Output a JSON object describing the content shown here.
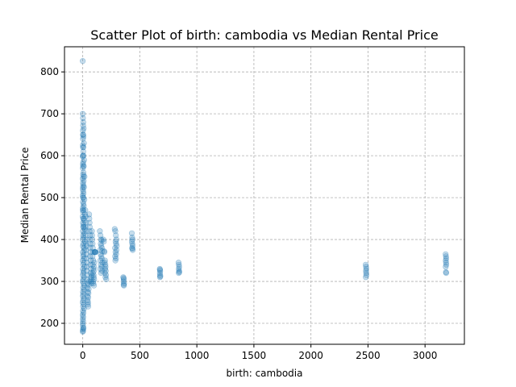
{
  "chart_data": {
    "type": "scatter",
    "title": "Scatter Plot of birth: cambodia vs Median Rental Price",
    "xlabel": "birth: cambodia",
    "ylabel": "Median Rental Price",
    "xlim": [
      -160,
      3345
    ],
    "ylim": [
      150,
      860
    ],
    "xticks": [
      0,
      500,
      1000,
      1500,
      2000,
      2500,
      3000
    ],
    "yticks": [
      200,
      300,
      400,
      500,
      600,
      700,
      800
    ],
    "grid": true,
    "legend": "none",
    "marker_color": "#1f77b4",
    "marker_alpha": 0.25,
    "series": [
      {
        "points": [
          [
            0,
            826
          ],
          [
            0,
            700
          ],
          [
            2,
            690
          ],
          [
            5,
            680
          ],
          [
            3,
            672
          ],
          [
            8,
            665
          ],
          [
            1,
            660
          ],
          [
            4,
            650
          ],
          [
            6,
            645
          ],
          [
            2,
            640
          ],
          [
            10,
            630
          ],
          [
            1,
            625
          ],
          [
            3,
            620
          ],
          [
            5,
            610
          ],
          [
            7,
            600
          ],
          [
            0,
            598
          ],
          [
            12,
            590
          ],
          [
            4,
            585
          ],
          [
            2,
            580
          ],
          [
            9,
            575
          ],
          [
            1,
            570
          ],
          [
            6,
            560
          ],
          [
            3,
            555
          ],
          [
            15,
            550
          ],
          [
            0,
            545
          ],
          [
            8,
            540
          ],
          [
            2,
            535
          ],
          [
            5,
            530
          ],
          [
            11,
            525
          ],
          [
            1,
            520
          ],
          [
            4,
            515
          ],
          [
            7,
            510
          ],
          [
            0,
            505
          ],
          [
            3,
            500
          ],
          [
            14,
            495
          ],
          [
            2,
            490
          ],
          [
            6,
            485
          ],
          [
            9,
            480
          ],
          [
            1,
            475
          ],
          [
            5,
            470
          ],
          [
            3,
            465
          ],
          [
            20,
            460
          ],
          [
            0,
            455
          ],
          [
            8,
            450
          ],
          [
            12,
            445
          ],
          [
            2,
            440
          ],
          [
            6,
            435
          ],
          [
            4,
            430
          ],
          [
            16,
            425
          ],
          [
            1,
            420
          ],
          [
            10,
            415
          ],
          [
            3,
            410
          ],
          [
            7,
            405
          ],
          [
            0,
            400
          ],
          [
            18,
            395
          ],
          [
            5,
            390
          ],
          [
            2,
            385
          ],
          [
            9,
            380
          ],
          [
            13,
            375
          ],
          [
            1,
            370
          ],
          [
            6,
            365
          ],
          [
            4,
            360
          ],
          [
            11,
            355
          ],
          [
            0,
            350
          ],
          [
            8,
            345
          ],
          [
            3,
            340
          ],
          [
            15,
            335
          ],
          [
            2,
            330
          ],
          [
            7,
            325
          ],
          [
            5,
            320
          ],
          [
            1,
            315
          ],
          [
            10,
            310
          ],
          [
            4,
            305
          ],
          [
            0,
            300
          ],
          [
            6,
            295
          ],
          [
            12,
            290
          ],
          [
            3,
            285
          ],
          [
            9,
            280
          ],
          [
            2,
            275
          ],
          [
            5,
            270
          ],
          [
            1,
            265
          ],
          [
            8,
            260
          ],
          [
            4,
            255
          ],
          [
            0,
            250
          ],
          [
            7,
            245
          ],
          [
            3,
            240
          ],
          [
            11,
            235
          ],
          [
            2,
            230
          ],
          [
            6,
            225
          ],
          [
            0,
            220
          ],
          [
            4,
            215
          ],
          [
            1,
            210
          ],
          [
            3,
            205
          ],
          [
            0,
            200
          ],
          [
            2,
            195
          ],
          [
            5,
            190
          ],
          [
            1,
            185
          ],
          [
            0,
            180
          ],
          [
            3,
            182
          ],
          [
            6,
            188
          ],
          [
            2,
            650
          ],
          [
            4,
            620
          ],
          [
            1,
            600
          ],
          [
            3,
            575
          ],
          [
            6,
            550
          ],
          [
            2,
            525
          ],
          [
            5,
            500
          ],
          [
            1,
            470
          ],
          [
            4,
            450
          ],
          [
            8,
            430
          ],
          [
            22,
            470
          ],
          [
            25,
            455
          ],
          [
            28,
            440
          ],
          [
            24,
            430
          ],
          [
            30,
            420
          ],
          [
            26,
            410
          ],
          [
            32,
            400
          ],
          [
            27,
            390
          ],
          [
            35,
            385
          ],
          [
            29,
            375
          ],
          [
            33,
            365
          ],
          [
            31,
            355
          ],
          [
            38,
            345
          ],
          [
            34,
            335
          ],
          [
            36,
            325
          ],
          [
            40,
            315
          ],
          [
            37,
            305
          ],
          [
            42,
            295
          ],
          [
            39,
            285
          ],
          [
            44,
            275
          ],
          [
            41,
            265
          ],
          [
            43,
            255
          ],
          [
            45,
            245
          ],
          [
            47,
            240
          ],
          [
            46,
            250
          ],
          [
            48,
            262
          ],
          [
            50,
            272
          ],
          [
            52,
            282
          ],
          [
            49,
            292
          ],
          [
            55,
            300
          ],
          [
            56,
            460
          ],
          [
            58,
            450
          ],
          [
            60,
            440
          ],
          [
            62,
            430
          ],
          [
            59,
            420
          ],
          [
            64,
            410
          ],
          [
            61,
            400
          ],
          [
            66,
            390
          ],
          [
            63,
            380
          ],
          [
            68,
            370
          ],
          [
            65,
            360
          ],
          [
            70,
            350
          ],
          [
            67,
            340
          ],
          [
            72,
            330
          ],
          [
            69,
            320
          ],
          [
            74,
            310
          ],
          [
            71,
            300
          ],
          [
            76,
            295
          ],
          [
            73,
            305
          ],
          [
            78,
            315
          ],
          [
            80,
            420
          ],
          [
            82,
            410
          ],
          [
            84,
            400
          ],
          [
            86,
            390
          ],
          [
            88,
            380
          ],
          [
            90,
            370
          ],
          [
            85,
            360
          ],
          [
            92,
            350
          ],
          [
            87,
            340
          ],
          [
            94,
            330
          ],
          [
            89,
            320
          ],
          [
            96,
            310
          ],
          [
            91,
            300
          ],
          [
            98,
            290
          ],
          [
            93,
            295
          ],
          [
            100,
            305
          ],
          [
            95,
            315
          ],
          [
            97,
            325
          ],
          [
            99,
            335
          ],
          [
            101,
            345
          ],
          [
            103,
            370
          ],
          [
            105,
            370
          ],
          [
            107,
            370
          ],
          [
            110,
            370
          ],
          [
            112,
            370
          ],
          [
            150,
            420
          ],
          [
            155,
            410
          ],
          [
            160,
            400
          ],
          [
            165,
            398
          ],
          [
            158,
            390
          ],
          [
            162,
            385
          ],
          [
            168,
            380
          ],
          [
            152,
            375
          ],
          [
            170,
            372
          ],
          [
            157,
            365
          ],
          [
            163,
            360
          ],
          [
            167,
            355
          ],
          [
            154,
            350
          ],
          [
            172,
            345
          ],
          [
            159,
            340
          ],
          [
            166,
            335
          ],
          [
            153,
            330
          ],
          [
            169,
            325
          ],
          [
            161,
            320
          ],
          [
            180,
            400
          ],
          [
            185,
            395
          ],
          [
            190,
            370
          ],
          [
            188,
            372
          ],
          [
            195,
            350
          ],
          [
            192,
            345
          ],
          [
            198,
            340
          ],
          [
            200,
            335
          ],
          [
            196,
            330
          ],
          [
            202,
            325
          ],
          [
            194,
            320
          ],
          [
            204,
            315
          ],
          [
            199,
            310
          ],
          [
            206,
            305
          ],
          [
            280,
            425
          ],
          [
            285,
            420
          ],
          [
            290,
            410
          ],
          [
            295,
            400
          ],
          [
            288,
            395
          ],
          [
            292,
            390
          ],
          [
            298,
            385
          ],
          [
            283,
            380
          ],
          [
            296,
            375
          ],
          [
            287,
            370
          ],
          [
            293,
            365
          ],
          [
            284,
            360
          ],
          [
            291,
            355
          ],
          [
            286,
            350
          ],
          [
            355,
            310
          ],
          [
            358,
            308
          ],
          [
            360,
            305
          ],
          [
            357,
            300
          ],
          [
            362,
            295
          ],
          [
            359,
            292
          ],
          [
            361,
            290
          ],
          [
            430,
            415
          ],
          [
            433,
            405
          ],
          [
            436,
            400
          ],
          [
            431,
            395
          ],
          [
            434,
            390
          ],
          [
            437,
            385
          ],
          [
            432,
            380
          ],
          [
            435,
            378
          ],
          [
            438,
            375
          ],
          [
            675,
            330
          ],
          [
            677,
            328
          ],
          [
            679,
            325
          ],
          [
            676,
            320
          ],
          [
            678,
            315
          ],
          [
            680,
            312
          ],
          [
            677,
            310
          ],
          [
            840,
            345
          ],
          [
            843,
            340
          ],
          [
            845,
            335
          ],
          [
            842,
            330
          ],
          [
            844,
            325
          ],
          [
            846,
            322
          ],
          [
            841,
            320
          ],
          [
            2480,
            340
          ],
          [
            2483,
            335
          ],
          [
            2485,
            330
          ],
          [
            2482,
            325
          ],
          [
            2484,
            320
          ],
          [
            2486,
            315
          ],
          [
            2481,
            310
          ],
          [
            3180,
            365
          ],
          [
            3183,
            360
          ],
          [
            3185,
            355
          ],
          [
            3182,
            350
          ],
          [
            3184,
            345
          ],
          [
            3186,
            340
          ],
          [
            3181,
            335
          ],
          [
            3183,
            322
          ],
          [
            3185,
            320
          ]
        ]
      }
    ]
  }
}
